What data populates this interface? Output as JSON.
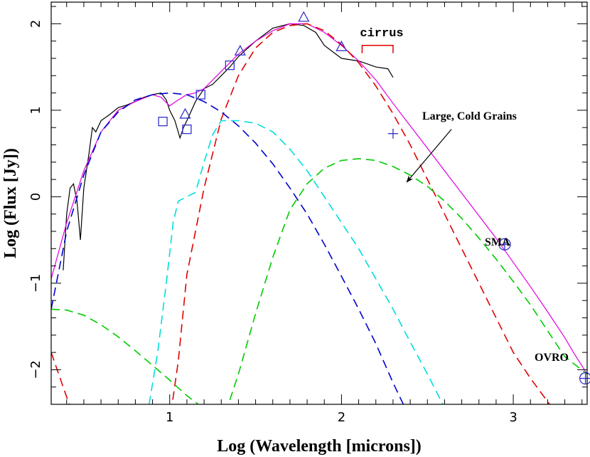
{
  "chart_data": {
    "type": "line",
    "xlabel": "Log (Wavelength [microns])",
    "ylabel": "Log (Flux [Jy])",
    "xlim": [
      0.31,
      3.43
    ],
    "ylim": [
      -2.4,
      2.25
    ],
    "x_ticks": [
      1,
      2,
      3
    ],
    "y_ticks": [
      -2,
      -1,
      0,
      1,
      2
    ],
    "grid": false,
    "colors": {
      "observed": "#000000",
      "total_model": "#e000e0",
      "red_component": "#e00000",
      "blue_component": "#0000cc",
      "cyan_component": "#00dddd",
      "green_component": "#00cc00",
      "data_points": "#3333cc",
      "bracket": "#e00000"
    },
    "annotations": {
      "cirrus": "cirrus",
      "large_cold_grains": "Large, Cold Grains",
      "sma": "SMA",
      "ovro": "OVRO"
    },
    "series": [
      {
        "key": "observed_spectrum",
        "style": "solid",
        "color": "#000000",
        "x": [
          0.38,
          0.4,
          0.42,
          0.44,
          0.46,
          0.48,
          0.5,
          0.53,
          0.55,
          0.57,
          0.6,
          0.65,
          0.7,
          0.75,
          0.8,
          0.85,
          0.9,
          0.95,
          0.98,
          1.0,
          1.03,
          1.06,
          1.08,
          1.1,
          1.15,
          1.2,
          1.25,
          1.3,
          1.35,
          1.4,
          1.5,
          1.6,
          1.7,
          1.78,
          1.85,
          1.9,
          2.0,
          2.1,
          2.2,
          2.27,
          2.3
        ],
        "y": [
          -0.85,
          -0.2,
          0.1,
          0.15,
          -0.05,
          -0.5,
          0.1,
          0.5,
          0.8,
          0.75,
          0.88,
          0.95,
          1.03,
          1.06,
          1.1,
          1.15,
          1.18,
          1.2,
          1.12,
          1.0,
          0.88,
          0.68,
          0.8,
          0.88,
          1.1,
          1.25,
          1.3,
          1.4,
          1.5,
          1.62,
          1.8,
          1.95,
          2.0,
          1.98,
          1.9,
          1.75,
          1.6,
          1.57,
          1.5,
          1.48,
          1.38
        ]
      },
      {
        "key": "total_model",
        "style": "solid",
        "color": "#e000e0",
        "x": [
          0.31,
          0.4,
          0.5,
          0.6,
          0.7,
          0.8,
          0.9,
          0.95,
          1.0,
          1.05,
          1.1,
          1.15,
          1.2,
          1.3,
          1.4,
          1.5,
          1.6,
          1.7,
          1.8,
          1.9,
          2.0,
          2.1,
          2.2,
          2.3,
          2.4,
          2.5,
          2.6,
          2.7,
          2.8,
          2.9,
          3.0,
          3.1,
          3.2,
          3.3,
          3.35,
          3.43
        ],
        "y": [
          -0.95,
          -0.3,
          0.3,
          0.75,
          1.0,
          1.1,
          1.18,
          1.15,
          1.05,
          1.12,
          1.18,
          1.2,
          1.25,
          1.45,
          1.65,
          1.8,
          1.92,
          2.0,
          2.0,
          1.9,
          1.75,
          1.57,
          1.35,
          1.08,
          0.82,
          0.56,
          0.3,
          0.04,
          -0.22,
          -0.48,
          -0.76,
          -1.04,
          -1.33,
          -1.63,
          -1.8,
          -2.05
        ]
      },
      {
        "key": "red_component",
        "style": "dashed",
        "color": "#e00000",
        "x": [
          0.31,
          0.45,
          0.6,
          0.8,
          1.0,
          1.05,
          1.1,
          1.2,
          1.3,
          1.4,
          1.5,
          1.6,
          1.7,
          1.8,
          1.9,
          2.0,
          2.1,
          2.2,
          2.3,
          2.4,
          2.5,
          2.6,
          2.7,
          2.8,
          2.9,
          3.0,
          3.1,
          3.23
        ],
        "y": [
          -1.8,
          -2.6,
          -3.1,
          -3.2,
          -2.6,
          -1.9,
          -0.9,
          0.1,
          0.9,
          1.4,
          1.72,
          1.9,
          1.98,
          2.0,
          1.92,
          1.76,
          1.55,
          1.28,
          0.96,
          0.6,
          0.2,
          -0.2,
          -0.6,
          -1.0,
          -1.4,
          -1.8,
          -2.1,
          -2.45
        ]
      },
      {
        "key": "blue_component",
        "style": "dashed",
        "color": "#0000cc",
        "x": [
          0.31,
          0.4,
          0.5,
          0.6,
          0.7,
          0.8,
          0.9,
          1.0,
          1.1,
          1.2,
          1.3,
          1.4,
          1.5,
          1.6,
          1.7,
          1.8,
          1.9,
          2.0,
          2.1,
          2.2,
          2.3,
          2.36
        ],
        "y": [
          -1.3,
          -0.4,
          0.25,
          0.75,
          0.98,
          1.12,
          1.18,
          1.2,
          1.18,
          1.1,
          0.98,
          0.82,
          0.62,
          0.38,
          0.1,
          -0.2,
          -0.55,
          -0.92,
          -1.3,
          -1.7,
          -2.15,
          -2.4
        ]
      },
      {
        "key": "cyan_component",
        "style": "dashed",
        "color": "#00dddd",
        "x": [
          0.88,
          0.93,
          0.98,
          1.02,
          1.05,
          1.1,
          1.15,
          1.2,
          1.25,
          1.3,
          1.4,
          1.5,
          1.6,
          1.7,
          1.8,
          1.9,
          2.0,
          2.1,
          2.2,
          2.3,
          2.4,
          2.5,
          2.59
        ],
        "y": [
          -2.4,
          -1.8,
          -1.0,
          -0.3,
          -0.05,
          0.0,
          0.05,
          0.4,
          0.72,
          0.88,
          0.88,
          0.85,
          0.75,
          0.55,
          0.3,
          0.0,
          -0.3,
          -0.6,
          -0.95,
          -1.3,
          -1.68,
          -2.05,
          -2.4
        ]
      },
      {
        "key": "green_warm_component",
        "style": "dashed",
        "color": "#00cc00",
        "x": [
          0.31,
          0.4,
          0.5,
          0.6,
          0.7,
          0.8,
          0.9,
          1.0,
          1.1,
          1.2
        ],
        "y": [
          -1.3,
          -1.31,
          -1.37,
          -1.48,
          -1.62,
          -1.78,
          -1.95,
          -2.12,
          -2.3,
          -2.45
        ]
      },
      {
        "key": "green_cold_grains",
        "style": "dashed",
        "color": "#00cc00",
        "x": [
          1.35,
          1.4,
          1.5,
          1.6,
          1.7,
          1.8,
          1.9,
          2.0,
          2.1,
          2.2,
          2.3,
          2.4,
          2.5,
          2.6,
          2.7,
          2.8,
          2.9,
          3.0,
          3.1,
          3.2,
          3.3,
          3.43
        ],
        "y": [
          -2.35,
          -2.05,
          -1.35,
          -0.7,
          -0.15,
          0.15,
          0.33,
          0.42,
          0.44,
          0.42,
          0.35,
          0.25,
          0.12,
          -0.05,
          -0.25,
          -0.48,
          -0.72,
          -0.98,
          -1.25,
          -1.55,
          -1.85,
          -2.05
        ]
      }
    ],
    "points": [
      {
        "marker": "square",
        "x": 0.96,
        "y": 0.87
      },
      {
        "marker": "square",
        "x": 1.1,
        "y": 0.78
      },
      {
        "marker": "square",
        "x": 1.18,
        "y": 1.18
      },
      {
        "marker": "square",
        "x": 1.35,
        "y": 1.52
      },
      {
        "marker": "triangle",
        "x": 1.09,
        "y": 0.95
      },
      {
        "marker": "triangle",
        "x": 1.41,
        "y": 1.68
      },
      {
        "marker": "triangle",
        "x": 1.78,
        "y": 2.07
      },
      {
        "marker": "triangle",
        "x": 2.0,
        "y": 1.73
      },
      {
        "marker": "plus",
        "x": 2.3,
        "y": 0.73
      },
      {
        "marker": "circle-plus",
        "x": 2.95,
        "y": -0.55
      },
      {
        "marker": "circle-plus",
        "x": 3.42,
        "y": -2.1
      }
    ],
    "cirrus_bracket": {
      "x_start": 2.12,
      "x_end": 2.3,
      "y_top": 1.75,
      "y_bottom": 1.66
    },
    "arrow": {
      "from_x": 2.64,
      "from_y": 0.78,
      "to_x": 2.38,
      "to_y": 0.17
    }
  }
}
